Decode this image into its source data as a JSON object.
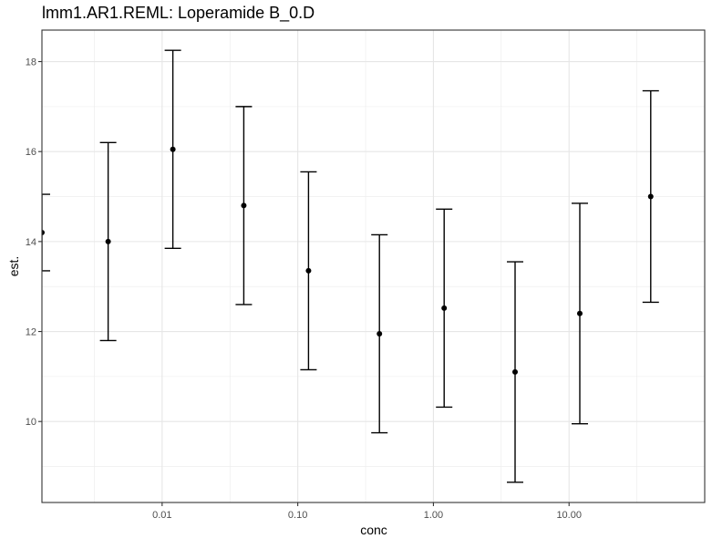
{
  "chart_data": {
    "type": "scatter",
    "title": "lmm1.AR1.REML: Loperamide B_0.D",
    "xlabel": "conc",
    "ylabel": "est.",
    "x_scale": "log10",
    "xlim": [
      0.0013,
      100
    ],
    "ylim": [
      8.2,
      18.7
    ],
    "x_ticks": [
      0.01,
      0.1,
      1,
      10
    ],
    "x_tick_labels": [
      "0.01",
      "0.10",
      "1.00",
      "10.00"
    ],
    "y_ticks": [
      10,
      12,
      14,
      16,
      18
    ],
    "y_tick_labels": [
      "10",
      "12",
      "14",
      "16",
      "18"
    ],
    "grid": true,
    "legend": "none",
    "series": [
      {
        "color": "#000000",
        "points": [
          {
            "x": 0.0013,
            "y": 14.2,
            "lower": 13.35,
            "upper": 15.05
          },
          {
            "x": 0.004,
            "y": 14.0,
            "lower": 11.8,
            "upper": 16.2
          },
          {
            "x": 0.012,
            "y": 16.05,
            "lower": 13.85,
            "upper": 18.25
          },
          {
            "x": 0.04,
            "y": 14.8,
            "lower": 12.6,
            "upper": 17.0
          },
          {
            "x": 0.12,
            "y": 13.35,
            "lower": 11.15,
            "upper": 15.55
          },
          {
            "x": 0.4,
            "y": 11.95,
            "lower": 9.75,
            "upper": 14.15
          },
          {
            "x": 1.2,
            "y": 12.52,
            "lower": 10.32,
            "upper": 14.72
          },
          {
            "x": 4.0,
            "y": 11.1,
            "lower": 8.65,
            "upper": 13.55
          },
          {
            "x": 12.0,
            "y": 12.4,
            "lower": 9.95,
            "upper": 14.85
          },
          {
            "x": 40.0,
            "y": 15.0,
            "lower": 12.65,
            "upper": 17.35
          }
        ]
      }
    ]
  }
}
